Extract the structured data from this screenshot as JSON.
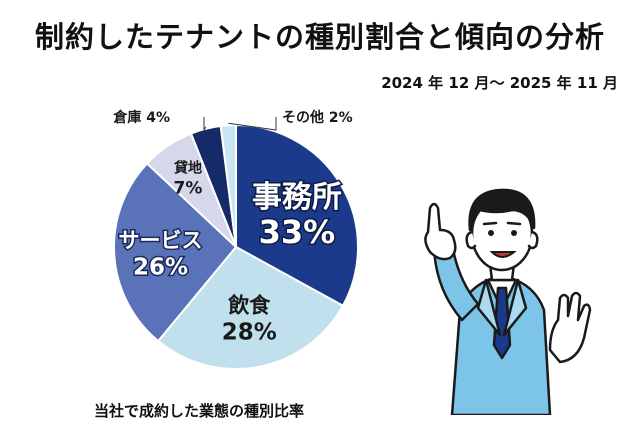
{
  "title": "制約したテナントの種別割合と傾向の分析",
  "period": "2024 年 12 月～ 2025 年 11 月",
  "caption": "当社で成約した業態の種別比率",
  "chart_data": {
    "type": "pie",
    "unit": "%",
    "slices": [
      {
        "label": "事務所",
        "value": 33,
        "color": "#1c3a8c"
      },
      {
        "label": "飲食",
        "value": 28,
        "color": "#bfe0ec"
      },
      {
        "label": "サービス",
        "value": 26,
        "color": "#5a73b8"
      },
      {
        "label": "貸地",
        "value": 7,
        "color": "#d4d8ea"
      },
      {
        "label": "倉庫",
        "value": 4,
        "color": "#152a66"
      },
      {
        "label": "その他",
        "value": 2,
        "color": "#c9e6f2"
      }
    ]
  },
  "colors": {
    "suit": "#7cc4e8",
    "suit_outline": "#1a1a1a",
    "tie": "#1c3a8c"
  },
  "icons": {
    "illustration": "businessman-pointing-icon"
  }
}
